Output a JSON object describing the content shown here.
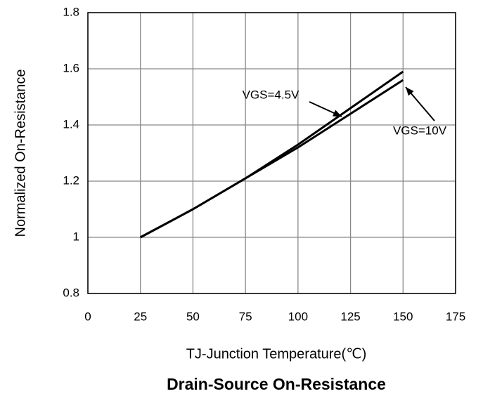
{
  "chart_data": {
    "type": "line",
    "title": "Drain-Source On-Resistance",
    "x_label": "TJ-Junction Temperature(℃)",
    "y_label": "Normalized On-Resistance",
    "x": [
      25,
      50,
      75,
      100,
      125,
      150
    ],
    "series": [
      {
        "name": "VGS=4.5V",
        "color": "#000000",
        "values": [
          1,
          1.1,
          1.21,
          1.33,
          1.46,
          1.59
        ]
      },
      {
        "name": "VGS=10V",
        "color": "#000000",
        "values": [
          1,
          1.1,
          1.21,
          1.32,
          1.44,
          1.56
        ]
      }
    ],
    "xlim": [
      0,
      175
    ],
    "xticks": [
      0,
      25,
      50,
      75,
      100,
      125,
      150,
      175
    ],
    "ylim": [
      0.8,
      1.8
    ],
    "yticks": [
      0.8,
      1,
      1.2,
      1.4,
      1.6,
      1.8
    ],
    "grid": true
  }
}
